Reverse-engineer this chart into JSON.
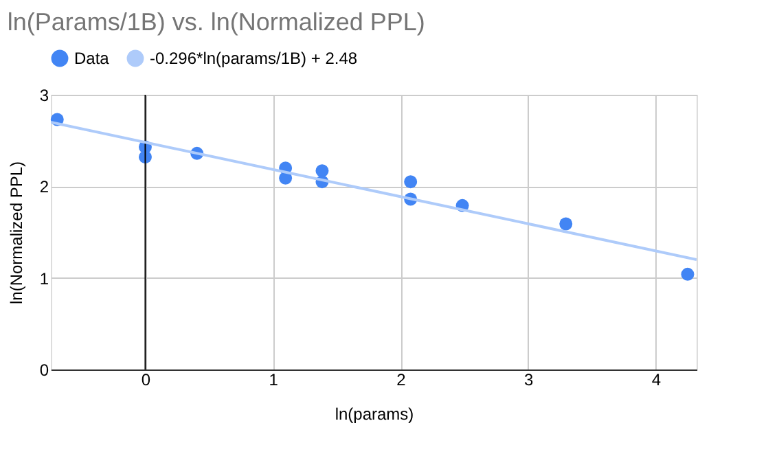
{
  "chart_data": {
    "type": "scatter",
    "title": "ln(Params/1B) vs. ln(Normalized PPL)",
    "xlabel": "ln(params)",
    "ylabel": "ln(Normalized PPL)",
    "series": [
      {
        "name": "Data",
        "marker": "circle",
        "color": "#4285f4",
        "x": [
          -0.69,
          0,
          0,
          0.405,
          1.099,
          1.099,
          1.386,
          1.386,
          2.079,
          2.079,
          2.485,
          3.296,
          4.25
        ],
        "values": [
          2.73,
          2.43,
          2.32,
          2.36,
          2.2,
          2.09,
          2.17,
          2.05,
          2.05,
          1.86,
          1.79,
          1.59,
          1.04
        ]
      },
      {
        "name": "-0.296*ln(params/1B) + 2.48",
        "type": "line",
        "color": "#aecbfa",
        "x": [
          -0.74,
          4.32
        ],
        "values": [
          2.7,
          1.2
        ]
      }
    ],
    "xlim": [
      -0.74,
      4.32
    ],
    "xticks": [
      0,
      1,
      2,
      3,
      4
    ],
    "ylim": [
      0,
      3
    ],
    "yticks": [
      0,
      1,
      2,
      3
    ],
    "ref_lines": [
      {
        "axis": "x",
        "value": 0,
        "color": "#000000"
      }
    ],
    "grid": true,
    "legend": "top left"
  }
}
